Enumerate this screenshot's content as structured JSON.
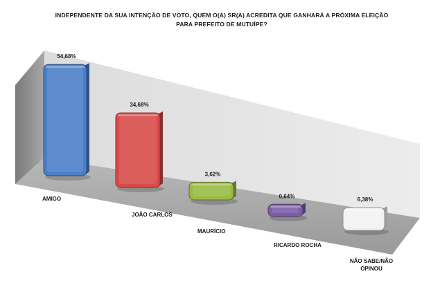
{
  "chart_data": {
    "type": "bar",
    "title_lines": [
      "INDEPENDENTE DA SUA INTENÇÃO DE VOTO, QUEM O(A) SR(A) ACREDITA QUE GANHARÁ A PRÓXIMA ELEIÇÃO",
      "PARA PREFEITO DE MUTUÍPE?"
    ],
    "categories": [
      "AMIGO",
      "JOÃO CARLOS",
      "MAURÍCIO",
      "RICARDO ROCHA",
      "NÃO SABE/NÃO OPINOU"
    ],
    "category_label_lines": [
      [
        "AMIGO"
      ],
      [
        "JOÃO CARLOS"
      ],
      [
        "MAURÍCIO"
      ],
      [
        "RICARDO ROCHA"
      ],
      [
        "NÃO SABE/NÃO",
        "OPINOU"
      ]
    ],
    "values": [
      54.68,
      34.68,
      3.62,
      0.64,
      6.38
    ],
    "value_labels": [
      "54,68%",
      "34,68%",
      "3,62%",
      "0,64%",
      "6,38%"
    ],
    "colors": [
      "#4a7fc8",
      "#d84a48",
      "#98bb44",
      "#7e5ca8",
      "#f2f2f2"
    ],
    "ylim": [
      0,
      60
    ],
    "grid": false,
    "legend": "none",
    "style": "3d"
  }
}
